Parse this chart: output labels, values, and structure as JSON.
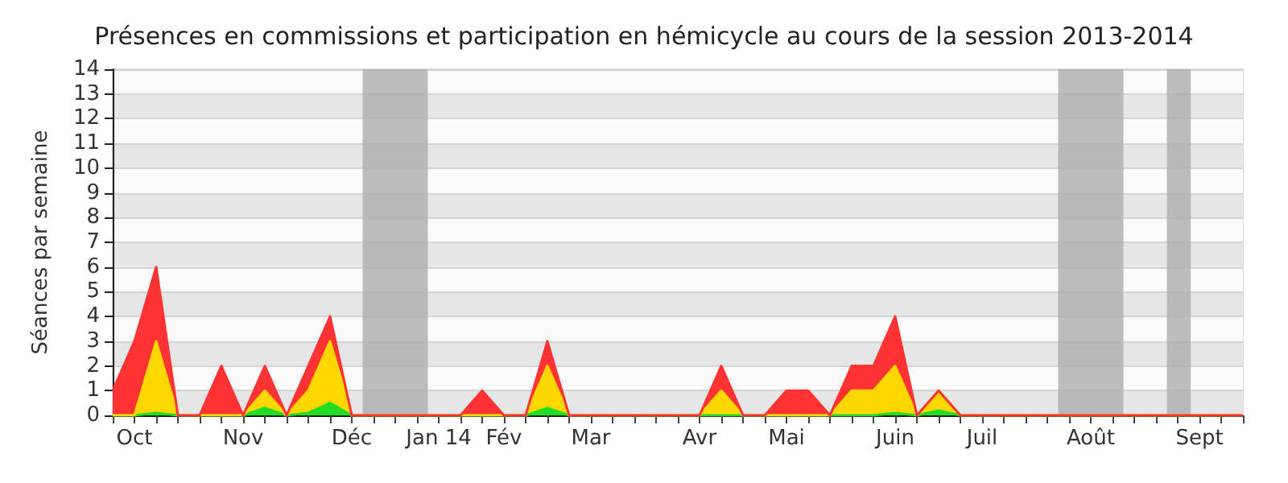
{
  "chart_data": {
    "type": "area",
    "title": "Présences en commissions et participation en hémicycle au cours de la session 2013-2014",
    "ylabel": "Séances par semaine",
    "stacked": true,
    "categories": [
      null,
      "Oct",
      null,
      null,
      null,
      null,
      "Nov",
      null,
      null,
      null,
      null,
      "Déc",
      null,
      null,
      null,
      "Jan 14",
      null,
      null,
      "Fév",
      null,
      null,
      null,
      "Mar",
      null,
      null,
      null,
      null,
      "Avr",
      null,
      null,
      null,
      "Mai",
      null,
      null,
      null,
      null,
      "Juin",
      null,
      null,
      null,
      "Juil",
      null,
      null,
      null,
      null,
      "Août",
      null,
      null,
      null,
      null,
      "Sept",
      null,
      null
    ],
    "series": [
      {
        "color": "#22dd22",
        "values": [
          0,
          0,
          0.1,
          0,
          0,
          0,
          0,
          0.3,
          0,
          0.1,
          0.5,
          0,
          0,
          0,
          0,
          0,
          0,
          0,
          0,
          0,
          0.3,
          0,
          0,
          0,
          0,
          0,
          0,
          0,
          0,
          0,
          0,
          0,
          0,
          0,
          0,
          0,
          0.1,
          0,
          0.2,
          0,
          0,
          0,
          0,
          0,
          0,
          0,
          0,
          0,
          0,
          0,
          0,
          0,
          0
        ]
      },
      {
        "color": "#ffd700",
        "values": [
          0,
          0,
          2.9,
          0,
          0,
          0,
          0,
          0.7,
          0,
          0.9,
          2.5,
          0,
          0,
          0,
          0,
          0,
          0,
          0,
          0,
          0,
          1.7,
          0,
          0,
          0,
          0,
          0,
          0,
          0,
          1,
          0,
          0,
          0,
          0,
          0,
          1,
          1,
          1.9,
          0,
          0.8,
          0,
          0,
          0,
          0,
          0,
          0,
          0,
          0,
          0,
          0,
          0,
          0,
          0,
          0
        ]
      },
      {
        "color": "#ff3333",
        "values": [
          1,
          3,
          3,
          0,
          0,
          2,
          0,
          1,
          0,
          1,
          1,
          0,
          0,
          0,
          0,
          0,
          0,
          1,
          0,
          0,
          1,
          0,
          0,
          0,
          0,
          0,
          0,
          0,
          1,
          0,
          0,
          1,
          1,
          0,
          1,
          1,
          2,
          0,
          0,
          0,
          0,
          0,
          0,
          0,
          0,
          0,
          0,
          0,
          0,
          0,
          0,
          0,
          0
        ]
      }
    ],
    "ylim": [
      0,
      14
    ],
    "yticks": [
      0,
      1,
      2,
      3,
      4,
      5,
      6,
      7,
      8,
      9,
      10,
      11,
      12,
      13,
      14
    ],
    "grid": "y",
    "marker": "none"
  }
}
